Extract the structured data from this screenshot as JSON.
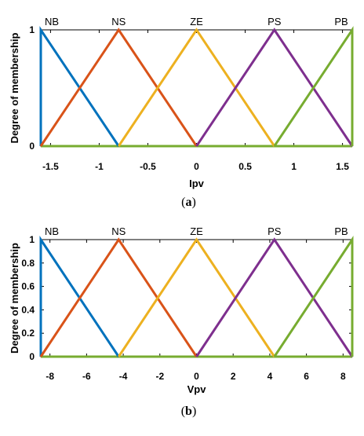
{
  "chart_data": [
    {
      "type": "line",
      "caption": "(a)",
      "caption_letter": "a",
      "xlabel": "Ipv",
      "ylabel": "Degree of membership",
      "xlim": [
        -1.6,
        1.6
      ],
      "ylim": [
        0,
        1
      ],
      "xticks": [
        "-1.5",
        "-1",
        "-0.5",
        "0",
        "0.5",
        "1",
        "1.5"
      ],
      "xtick_values": [
        -1.5,
        -1,
        -0.5,
        0,
        0.5,
        1,
        1.5
      ],
      "yticks": [
        "0",
        "1"
      ],
      "ytick_values": [
        0,
        1
      ],
      "series": [
        {
          "name": "NB",
          "color": "#0072BD",
          "x": [
            -1.6,
            -1.6,
            -0.8
          ],
          "y": [
            0,
            1,
            0
          ]
        },
        {
          "name": "NS",
          "color": "#D95319",
          "x": [
            -1.6,
            -0.8,
            0
          ],
          "y": [
            0,
            1,
            0
          ]
        },
        {
          "name": "ZE",
          "color": "#EDB120",
          "x": [
            -0.8,
            0,
            0.8
          ],
          "y": [
            0,
            1,
            0
          ]
        },
        {
          "name": "PS",
          "color": "#7E2F8E",
          "x": [
            0,
            0.8,
            1.6
          ],
          "y": [
            0,
            1,
            0
          ]
        },
        {
          "name": "PB",
          "color": "#77AC30",
          "x": [
            0.8,
            1.6,
            1.6
          ],
          "y": [
            0,
            1,
            0
          ]
        }
      ],
      "baseline": {
        "x": [
          -1.6,
          1.6
        ],
        "y": [
          0,
          0
        ],
        "color": "#77AC30"
      }
    },
    {
      "type": "line",
      "caption": "(b)",
      "caption_letter": "b",
      "xlabel": "Vpv",
      "ylabel": "Degree of membership",
      "xlim": [
        -8.5,
        8.5
      ],
      "ylim": [
        0,
        1
      ],
      "xticks": [
        "-8",
        "-6",
        "-4",
        "-2",
        "0",
        "2",
        "4",
        "6",
        "8"
      ],
      "xtick_values": [
        -8,
        -6,
        -4,
        -2,
        0,
        2,
        4,
        6,
        8
      ],
      "yticks": [
        "0",
        "0.2",
        "0.4",
        "0.6",
        "0.8",
        "1"
      ],
      "ytick_values": [
        0,
        0.2,
        0.4,
        0.6,
        0.8,
        1
      ],
      "series": [
        {
          "name": "NB",
          "color": "#0072BD",
          "x": [
            -8.5,
            -8.5,
            -4.25
          ],
          "y": [
            0,
            1,
            0
          ]
        },
        {
          "name": "NS",
          "color": "#D95319",
          "x": [
            -8.5,
            -4.25,
            0
          ],
          "y": [
            0,
            1,
            0
          ]
        },
        {
          "name": "ZE",
          "color": "#EDB120",
          "x": [
            -4.25,
            0,
            4.25
          ],
          "y": [
            0,
            1,
            0
          ]
        },
        {
          "name": "PS",
          "color": "#7E2F8E",
          "x": [
            0,
            4.25,
            8.5
          ],
          "y": [
            0,
            1,
            0
          ]
        },
        {
          "name": "PB",
          "color": "#77AC30",
          "x": [
            4.25,
            8.5,
            8.5
          ],
          "y": [
            0,
            1,
            0
          ]
        }
      ],
      "baseline": {
        "x": [
          -8.5,
          8.5
        ],
        "y": [
          0,
          0
        ],
        "color": "#77AC30"
      }
    }
  ]
}
